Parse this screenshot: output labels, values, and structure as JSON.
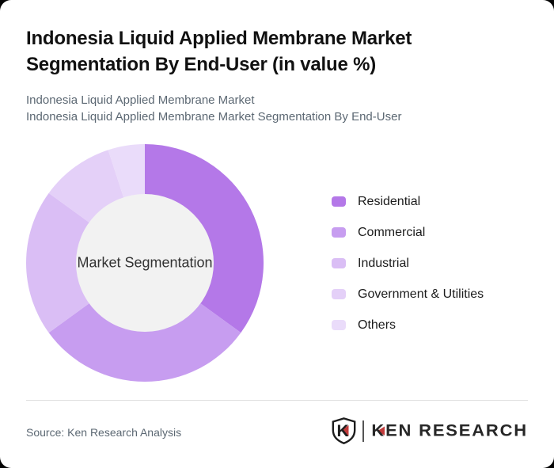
{
  "window": {
    "background": "#050505",
    "card_background": "#ffffff"
  },
  "header": {
    "title": "Indonesia Liquid Applied Membrane Market Segmentation By End-User (in value %)",
    "subtitle_line1": "Indonesia Liquid Applied Membrane Market",
    "subtitle_line2": "Indonesia Liquid Applied Membrane Market Segmentation By End-User",
    "title_color": "#111111",
    "subtitle_color": "#5c6873"
  },
  "chart_data": {
    "type": "pie",
    "variant": "donut",
    "title": "Indonesia Liquid Applied Membrane Market Segmentation By End-User (in value %)",
    "center_label": "Market Segmentation",
    "labels": [
      "Residential",
      "Commercial",
      "Industrial",
      "Government & Utilities",
      "Others"
    ],
    "values": [
      35,
      30,
      20,
      10,
      5
    ],
    "value_unit": "%",
    "values_are_estimates": true,
    "colors": [
      "#b478e8",
      "#c79df0",
      "#dabef5",
      "#e4d0f8",
      "#eadcfa"
    ],
    "start_angle_deg": 0,
    "direction": "clockwise",
    "inner_radius_ratio": 0.58,
    "center_fill": "#f2f2f2",
    "center_text_color": "#333333",
    "legend_position": "right"
  },
  "footer": {
    "source": "Source: Ken Research Analysis",
    "logo": {
      "icon_letter": "K",
      "brand_first_letter": "K",
      "brand_rest": "EN RESEARCH",
      "accent_red": "#c13a3a",
      "text_color": "#272727"
    }
  }
}
